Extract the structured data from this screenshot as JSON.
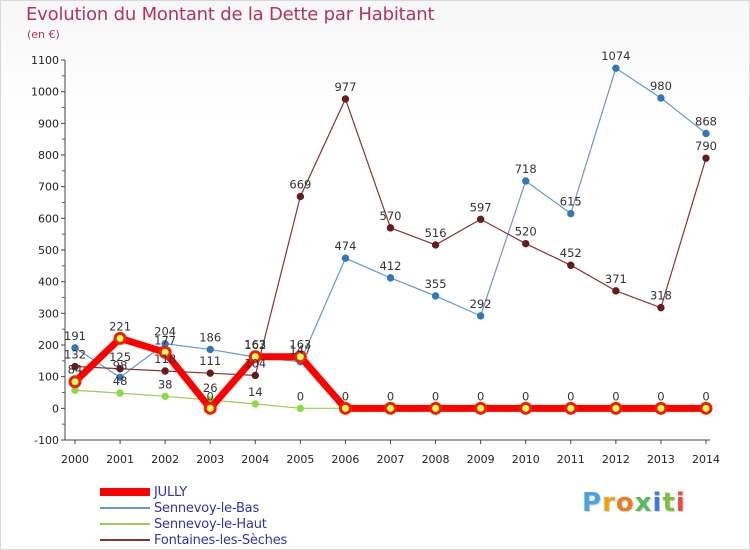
{
  "header": {
    "title": "Evolution du Montant de la Dette par Habitant",
    "subtitle": "(en €)"
  },
  "logo": {
    "text": "Proxiti",
    "letters": [
      "P",
      "r",
      "o",
      "x",
      "i",
      "t",
      "i"
    ],
    "colors": [
      "#4aa3df",
      "#f39c12",
      "#e67e22",
      "#5cb85c",
      "#3b7dd8",
      "#7fbf3f",
      "#e74c3c"
    ]
  },
  "chart_data": {
    "type": "line",
    "title": "Evolution du Montant de la Dette par Habitant",
    "subtitle": "(en €)",
    "xlabel": "",
    "ylabel": "",
    "x": [
      2000,
      2001,
      2002,
      2003,
      2004,
      2005,
      2006,
      2007,
      2008,
      2009,
      2010,
      2011,
      2012,
      2013,
      2014
    ],
    "ylim": [
      -100,
      1100
    ],
    "yticks": [
      -100,
      0,
      100,
      200,
      300,
      400,
      500,
      600,
      700,
      800,
      900,
      1000,
      1100
    ],
    "grid": false,
    "legend_position": "bottom-left",
    "series": [
      {
        "name": "Sennevoy-le-Haut",
        "color": "#99cc55",
        "marker_color": "#88dd44",
        "values": [
          57,
          48,
          38,
          26,
          14,
          0,
          0,
          0,
          0,
          0,
          0,
          0,
          0,
          0,
          0
        ],
        "labels": [
          "",
          "48",
          "38",
          "26",
          "14",
          "0",
          "",
          "",
          "",
          "",
          "",
          "",
          "",
          "",
          ""
        ]
      },
      {
        "name": "Sennevoy-le-Bas",
        "color": "#6699cc",
        "marker_color": "#3377bb",
        "values": [
          191,
          98,
          204,
          186,
          162,
          147,
          474,
          412,
          355,
          292,
          718,
          615,
          1074,
          980,
          868
        ],
        "labels": [
          "191",
          "98",
          "204",
          "186",
          "162",
          "147",
          "474",
          "412",
          "355",
          "292",
          "718",
          "615",
          "1074",
          "980",
          "868"
        ]
      },
      {
        "name": "Fontaines-les-Sèches",
        "color": "#883333",
        "marker_color": "#661a1a",
        "values": [
          132,
          125,
          118,
          111,
          104,
          669,
          977,
          570,
          516,
          597,
          520,
          452,
          371,
          318,
          790
        ],
        "labels": [
          "132",
          "125",
          "118",
          "111",
          "104",
          "669",
          "977",
          "570",
          "516",
          "597",
          "520",
          "452",
          "371",
          "318",
          "790"
        ]
      },
      {
        "name": "JULLY",
        "color": "#ff0000",
        "marker_color": "#ee0000",
        "values": [
          84,
          221,
          177,
          0,
          163,
          163,
          0,
          0,
          0,
          0,
          0,
          0,
          0,
          0,
          0
        ],
        "labels": [
          "84",
          "221",
          "177",
          "0",
          "163",
          "163",
          "0",
          "0",
          "0",
          "0",
          "0",
          "0",
          "0",
          "0",
          "0"
        ]
      }
    ],
    "legend_order": [
      "JULLY",
      "Sennevoy-le-Bas",
      "Sennevoy-le-Haut",
      "Fontaines-les-Sèches"
    ]
  }
}
